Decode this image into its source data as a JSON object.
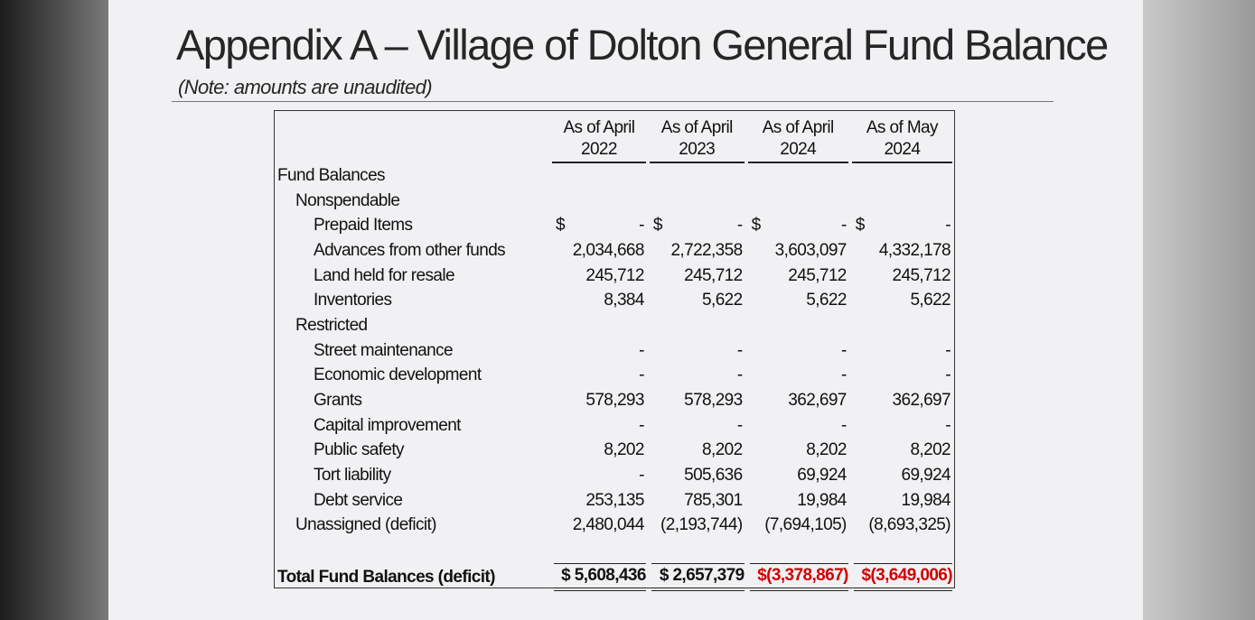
{
  "title": "Appendix A – Village of Dolton General Fund Balance",
  "note": "(Note: amounts are unaudited)",
  "table": {
    "headers": [
      [
        "As of April",
        "2022"
      ],
      [
        "As of April",
        "2023"
      ],
      [
        "As of April",
        "2024"
      ],
      [
        "As of May",
        "2024"
      ]
    ],
    "section": "Fund Balances",
    "groups": [
      {
        "label": "Nonspendable",
        "rows": [
          {
            "label": "Prepaid Items",
            "cells": [
              {
                "symbol": "$",
                "amount": "-"
              },
              {
                "symbol": "$",
                "amount": "-"
              },
              {
                "symbol": "$",
                "amount": "-"
              },
              {
                "symbol": "$",
                "amount": "-"
              }
            ]
          },
          {
            "label": "Advances from other funds",
            "cells": [
              "2,034,668",
              "2,722,358",
              "3,603,097",
              "4,332,178"
            ]
          },
          {
            "label": "Land held for resale",
            "cells": [
              "245,712",
              "245,712",
              "245,712",
              "245,712"
            ]
          },
          {
            "label": "Inventories",
            "cells": [
              "8,384",
              "5,622",
              "5,622",
              "5,622"
            ]
          }
        ]
      },
      {
        "label": "Restricted",
        "rows": [
          {
            "label": "Street maintenance",
            "cells": [
              "-",
              "-",
              "-",
              "-"
            ]
          },
          {
            "label": "Economic development",
            "cells": [
              "-",
              "-",
              "-",
              "-"
            ]
          },
          {
            "label": "Grants",
            "cells": [
              "578,293",
              "578,293",
              "362,697",
              "362,697"
            ]
          },
          {
            "label": "Capital improvement",
            "cells": [
              "-",
              "-",
              "-",
              "-"
            ]
          },
          {
            "label": "Public safety",
            "cells": [
              "8,202",
              "8,202",
              "8,202",
              "8,202"
            ]
          },
          {
            "label": "Tort liability",
            "cells": [
              "-",
              "505,636",
              "69,924",
              "69,924"
            ]
          },
          {
            "label": "Debt service",
            "cells": [
              "253,135",
              "785,301",
              "19,984",
              "19,984"
            ]
          }
        ]
      }
    ],
    "unassigned": {
      "label": "Unassigned (deficit)",
      "cells": [
        "2,480,044",
        "(2,193,744)",
        "(7,694,105)",
        "(8,693,325)"
      ]
    },
    "total": {
      "label": "Total Fund Balances (deficit)",
      "cells": [
        "$ 5,608,436",
        "$ 2,657,379",
        "$(3,378,867)",
        "$(3,649,006)"
      ]
    }
  }
}
